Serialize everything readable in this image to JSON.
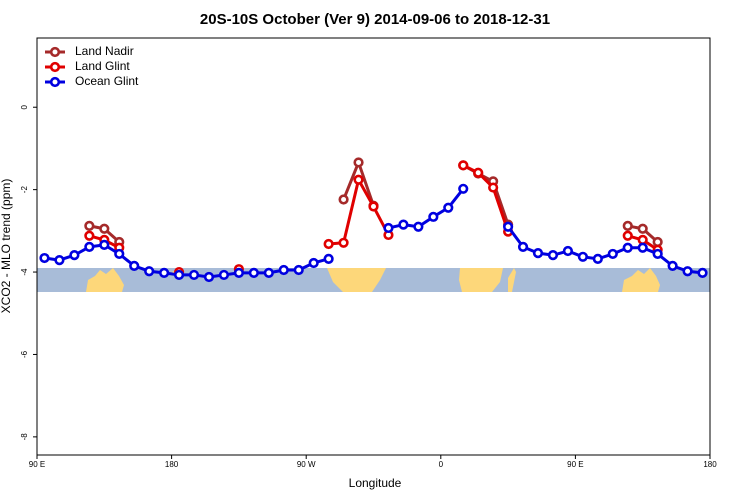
{
  "chart_data": {
    "type": "line",
    "title": "20S-10S October (Ver 9)   2014-09-06 to 2018-12-31",
    "x_label": "Longitude",
    "y_label": "XCO2 - MLO trend (ppm)",
    "xlim": [
      90,
      540
    ],
    "xticks": [
      {
        "value": 90,
        "label": "90 E"
      },
      180,
      {
        "value": 270,
        "label": "90 W"
      },
      {
        "value": 360,
        "label": "0"
      },
      {
        "value": 450,
        "label": "90 E"
      },
      {
        "value": 540,
        "label": "180"
      }
    ],
    "ylim": [
      -8.44,
      1.68
    ],
    "yticks": [
      0,
      -2,
      -4,
      -6,
      -8
    ],
    "grid": false,
    "legend": "top-left",
    "series": [
      {
        "name": "Land Nadir",
        "color": "#a52a2a",
        "x": [
          125,
          135,
          145,
          155,
          295,
          305,
          315,
          325,
          375,
          385,
          395,
          405,
          415,
          485,
          495,
          505
        ],
        "values": [
          -2.88,
          -2.95,
          -3.27,
          null,
          -2.24,
          -1.34,
          -2.39,
          null,
          -1.41,
          -1.61,
          -1.8,
          -2.85,
          null,
          -2.88,
          -2.95,
          -3.27
        ]
      },
      {
        "name": "Land Glint",
        "color": "#e00000",
        "x": [
          125,
          135,
          145,
          155,
          185,
          195,
          225,
          235,
          285,
          295,
          305,
          315,
          325,
          335,
          375,
          385,
          395,
          405,
          415,
          485,
          495,
          505
        ],
        "values": [
          -3.12,
          -3.22,
          -3.41,
          null,
          -4.0,
          null,
          -3.93,
          null,
          -3.32,
          -3.29,
          -1.76,
          -2.41,
          -3.1,
          null,
          -1.41,
          -1.59,
          -1.95,
          -3.02,
          null,
          -3.12,
          -3.22,
          -3.46
        ]
      },
      {
        "name": "Ocean Glint",
        "color": "#0000e0",
        "x": [
          95,
          105,
          115,
          125,
          135,
          145,
          155,
          165,
          175,
          185,
          195,
          205,
          215,
          225,
          235,
          245,
          255,
          265,
          275,
          285,
          295,
          325,
          335,
          345,
          355,
          365,
          375,
          395,
          405,
          415,
          425,
          435,
          445,
          455,
          465,
          475,
          485,
          495,
          505,
          515,
          525,
          535
        ],
        "values": [
          -3.66,
          -3.71,
          -3.59,
          -3.39,
          -3.34,
          -3.56,
          -3.85,
          -3.98,
          -4.02,
          -4.07,
          -4.07,
          -4.12,
          -4.07,
          -4.02,
          -4.02,
          -4.02,
          -3.95,
          -3.95,
          -3.78,
          -3.68,
          null,
          -2.93,
          -2.85,
          -2.9,
          -2.66,
          -2.44,
          -1.98,
          null,
          -2.9,
          -3.39,
          -3.54,
          -3.59,
          -3.49,
          -3.63,
          -3.68,
          -3.56,
          -3.41,
          -3.41,
          -3.56,
          -3.85,
          -3.98,
          -4.02
        ]
      }
    ]
  }
}
